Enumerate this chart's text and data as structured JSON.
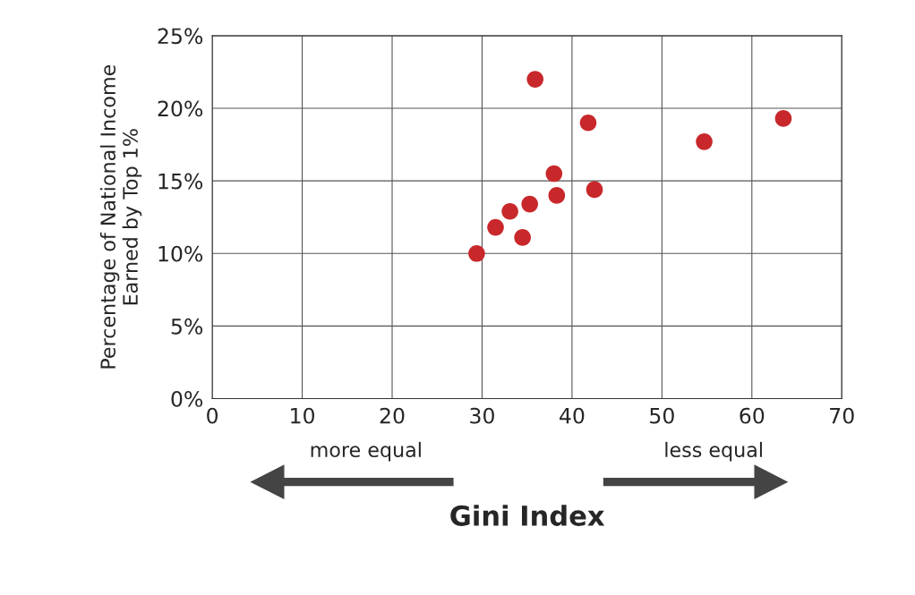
{
  "chart_data": {
    "type": "scatter",
    "xlabel": "Gini Index",
    "ylabel": "Percentage of National Income\nEarned by Top 1%",
    "x": [
      35.9,
      41.8,
      63.5,
      54.7,
      38.0,
      42.5,
      38.3,
      35.3,
      33.1,
      31.5,
      34.5,
      29.4
    ],
    "values": [
      22.0,
      19.0,
      19.3,
      17.7,
      15.5,
      14.4,
      14.0,
      13.4,
      12.9,
      11.8,
      11.1,
      10.0
    ],
    "color": "#c8282b",
    "marker": "circle",
    "grid": true,
    "xlim": [
      0,
      70
    ],
    "xticks": [
      0,
      10,
      20,
      30,
      40,
      50,
      60,
      70
    ],
    "ylim": [
      0,
      25
    ],
    "yticks": [
      {
        "value": 0,
        "label": "0%"
      },
      {
        "value": 5,
        "label": "5%"
      },
      {
        "value": 10,
        "label": "10%"
      },
      {
        "value": 15,
        "label": "15%"
      },
      {
        "value": 20,
        "label": "20%"
      },
      {
        "value": 25,
        "label": "25%"
      }
    ],
    "annotations": [
      "more equal",
      "less equal"
    ]
  }
}
